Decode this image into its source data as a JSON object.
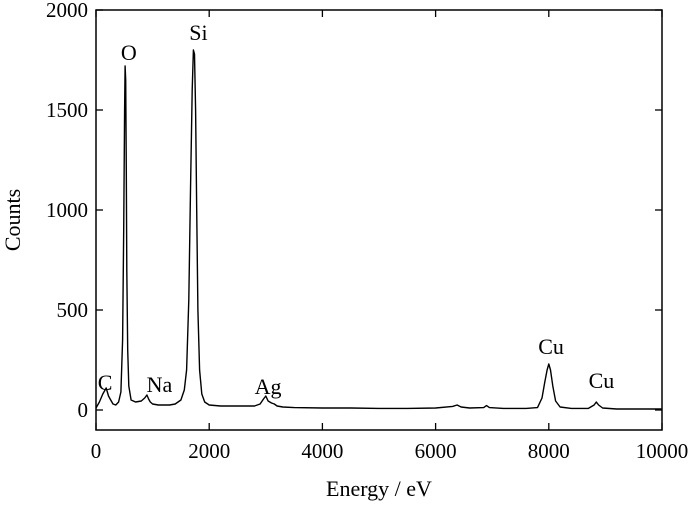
{
  "chart_data": {
    "type": "line",
    "title": "",
    "xlabel": "Energy / eV",
    "ylabel": "Counts",
    "xlim": [
      0,
      10000
    ],
    "ylim": [
      -100,
      2000
    ],
    "x_ticks": [
      0,
      2000,
      4000,
      6000,
      8000,
      10000
    ],
    "y_ticks": [
      0,
      500,
      1000,
      1500,
      2000
    ],
    "x_tick_labels": [
      "0",
      "2000",
      "4000",
      "6000",
      "8000",
      "10000"
    ],
    "y_tick_labels": [
      "0",
      "500",
      "1000",
      "1500",
      "2000"
    ],
    "grid": false,
    "legend": "none",
    "line_color": "#000000",
    "series": [
      {
        "x": [
          0,
          60,
          120,
          180,
          220,
          260,
          300,
          350,
          400,
          440,
          470,
          490,
          505,
          515,
          525,
          535,
          545,
          560,
          580,
          620,
          700,
          800,
          860,
          900,
          930,
          960,
          1000,
          1100,
          1200,
          1300,
          1400,
          1500,
          1560,
          1600,
          1640,
          1670,
          1700,
          1720,
          1740,
          1760,
          1780,
          1800,
          1830,
          1870,
          1920,
          2000,
          2200,
          2400,
          2600,
          2800,
          2900,
          2960,
          3000,
          3040,
          3100,
          3150,
          3200,
          3300,
          3500,
          4000,
          4500,
          5000,
          5500,
          6000,
          6300,
          6380,
          6450,
          6600,
          6850,
          6900,
          6950,
          7200,
          7600,
          7800,
          7880,
          7930,
          7970,
          8000,
          8030,
          8070,
          8120,
          8200,
          8400,
          8700,
          8800,
          8840,
          8880,
          8950,
          9200,
          9600,
          10000
        ],
        "y": [
          10,
          40,
          80,
          110,
          70,
          50,
          30,
          25,
          40,
          90,
          350,
          900,
          1500,
          1720,
          1650,
          1200,
          700,
          300,
          120,
          50,
          40,
          45,
          60,
          75,
          55,
          40,
          30,
          25,
          25,
          25,
          30,
          50,
          100,
          200,
          550,
          1100,
          1600,
          1800,
          1780,
          1500,
          1000,
          500,
          200,
          80,
          40,
          25,
          20,
          20,
          20,
          20,
          30,
          55,
          70,
          45,
          35,
          30,
          20,
          15,
          12,
          10,
          10,
          8,
          8,
          10,
          18,
          25,
          15,
          10,
          12,
          22,
          12,
          8,
          8,
          12,
          60,
          140,
          200,
          230,
          200,
          120,
          45,
          15,
          8,
          8,
          25,
          40,
          25,
          10,
          5,
          5,
          5
        ]
      }
    ],
    "annotations": [
      {
        "text": "C",
        "x": 160,
        "y": 100
      },
      {
        "text": "O",
        "x": 580,
        "y": 1750
      },
      {
        "text": "Si",
        "x": 1810,
        "y": 1850
      },
      {
        "text": "Na",
        "x": 1120,
        "y": 90
      },
      {
        "text": "Ag",
        "x": 3040,
        "y": 80
      },
      {
        "text": "Cu",
        "x": 8040,
        "y": 280
      },
      {
        "text": "Cu",
        "x": 8930,
        "y": 110
      }
    ]
  }
}
